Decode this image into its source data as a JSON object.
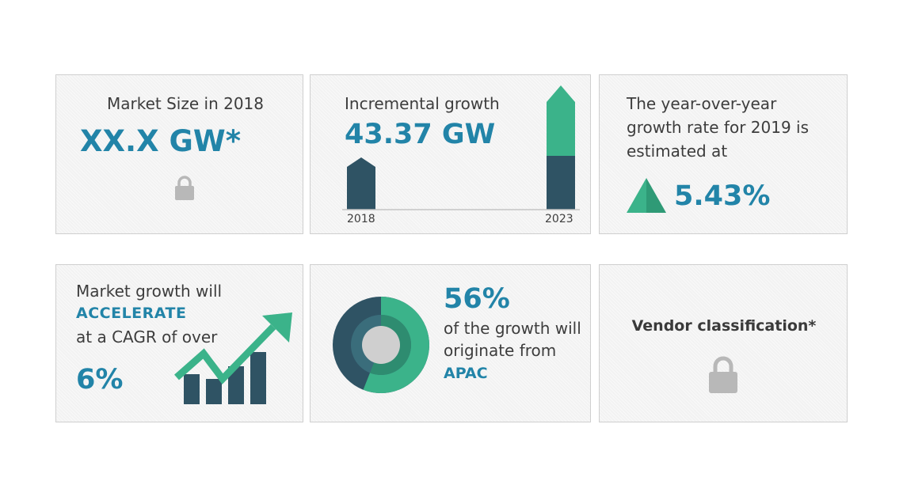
{
  "cards": {
    "market_size": {
      "label": "Market Size in 2018",
      "value": "XX.X GW*",
      "icon": "lock-icon"
    },
    "incremental_growth": {
      "label": "Incremental growth",
      "value": "43.37 GW",
      "year_start": "2018",
      "year_end": "2023"
    },
    "yoy_growth": {
      "line1": "The year-over-year",
      "line2": "growth rate for 2019 is",
      "line3": "estimated at",
      "value": "5.43%",
      "icon": "triangle-up-icon"
    },
    "cagr": {
      "line1": "Market growth will",
      "line2": "ACCELERATE",
      "line3": "at a CAGR of over",
      "value": "6%",
      "icon": "growth-chart-icon"
    },
    "region_share": {
      "value": "56%",
      "line1": "of the growth will",
      "line2": "originate from",
      "line3": "APAC",
      "share_fraction": 0.56,
      "icon": "donut-chart-icon"
    },
    "vendor": {
      "label": "Vendor classification*",
      "icon": "lock-icon"
    }
  },
  "colors": {
    "accent_blue": "#2284a8",
    "teal": "#3bb38a",
    "dark_slate": "#2f5364",
    "text_dark": "#3d3d3d",
    "lock_gray": "#b8b8b8"
  }
}
